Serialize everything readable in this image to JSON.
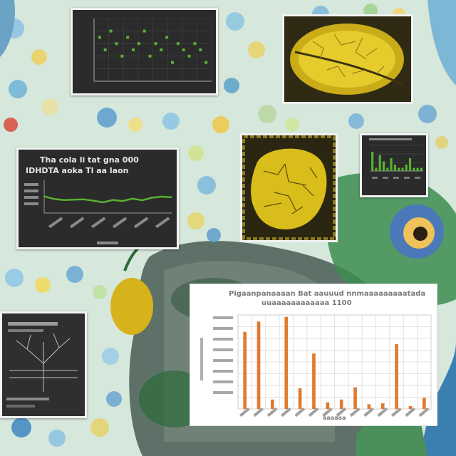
{
  "colors": {
    "background": "#cfe3d8",
    "panel_dark": "#2b2b2b",
    "chart_green": "#58b030",
    "chart_orange": "#e07a2e",
    "leaf_yellow": "#e2c21e",
    "stone_gray": "#6f7f7a"
  },
  "line_panel": {
    "title_line1": "Tha cola li tat gna 000",
    "title_line2": "IDHDTA aoka Tl aa laon"
  },
  "bar_panel": {
    "title_line1": "Pigaanpanaaaan Bat aauuud nnmaaaaaaaaatada",
    "title_line2": "uuaaaaaaaaaaaa 1100",
    "xlabel": "aaaaaa"
  },
  "icons": [
    "leaf-icon",
    "eye-icon",
    "tree-icon",
    "stone-icon",
    "fish-icon",
    "tentacle-icon"
  ],
  "chart_data": [
    {
      "type": "scatter",
      "points": [
        [
          1,
          7
        ],
        [
          2,
          5
        ],
        [
          3,
          8
        ],
        [
          4,
          6
        ],
        [
          5,
          4
        ],
        [
          6,
          7
        ],
        [
          7,
          5
        ],
        [
          8,
          6
        ],
        [
          9,
          8
        ],
        [
          10,
          4
        ],
        [
          11,
          6
        ],
        [
          12,
          5
        ],
        [
          13,
          7
        ],
        [
          14,
          3
        ],
        [
          15,
          6
        ],
        [
          16,
          5
        ],
        [
          17,
          4
        ],
        [
          18,
          6
        ],
        [
          19,
          5
        ],
        [
          20,
          3
        ]
      ],
      "ylim": [
        0,
        10
      ],
      "xlim": [
        0,
        21
      ]
    },
    {
      "type": "line",
      "values": [
        5.0,
        4.2,
        3.9,
        4.0,
        4.1,
        3.7,
        3.2,
        3.9,
        3.6,
        4.3,
        3.8,
        4.6,
        4.9,
        4.7
      ],
      "ylim": [
        0,
        10
      ]
    },
    {
      "type": "bar",
      "values": [
        6,
        1,
        5,
        3,
        1,
        4,
        2,
        1,
        1,
        2,
        4,
        1,
        1,
        1
      ],
      "ylim": [
        0,
        8
      ]
    },
    {
      "type": "bar",
      "values": [
        8.2,
        9.3,
        1.0,
        9.8,
        2.2,
        5.9,
        0.7,
        1.0,
        2.3,
        0.5,
        0.6,
        6.9,
        0.3,
        1.2
      ],
      "ylim": [
        0,
        10
      ]
    }
  ]
}
